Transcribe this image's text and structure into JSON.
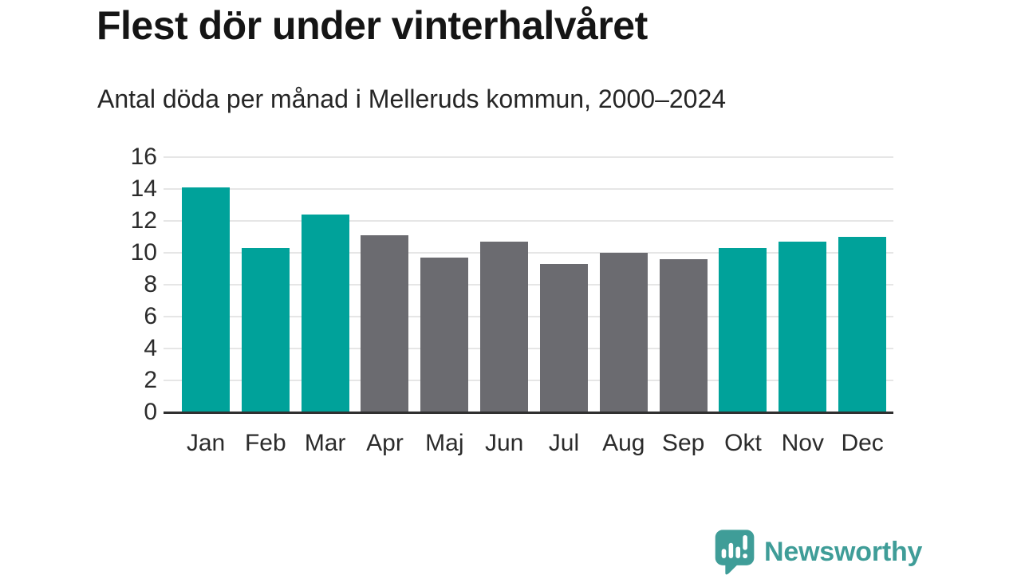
{
  "chart_data": {
    "type": "bar",
    "title": "Flest dör under vinterhalvåret",
    "subtitle": "Antal döda per månad i Melleruds kommun, 2000–2024",
    "categories": [
      "Jan",
      "Feb",
      "Mar",
      "Apr",
      "Maj",
      "Jun",
      "Jul",
      "Aug",
      "Sep",
      "Okt",
      "Nov",
      "Dec"
    ],
    "values": [
      14.1,
      10.3,
      12.4,
      11.1,
      9.7,
      10.7,
      9.3,
      10.0,
      9.6,
      10.3,
      10.7,
      11.0
    ],
    "bar_color_keys": [
      "teal",
      "teal",
      "teal",
      "gray",
      "gray",
      "gray",
      "gray",
      "gray",
      "gray",
      "teal",
      "teal",
      "teal"
    ],
    "xlabel": "",
    "ylabel": "",
    "ylim": [
      0,
      16
    ],
    "yticks": [
      0,
      2,
      4,
      6,
      8,
      10,
      12,
      14,
      16
    ],
    "grid": "horizontal",
    "legend": "none"
  },
  "colors": {
    "teal": "#00a29a",
    "gray": "#6b6b70",
    "gridline": "#e6e6e6",
    "axis": "#303030",
    "tick_text": "#2b2b2b",
    "title_text": "#151515",
    "subtitle_text": "#262626",
    "brand": "#3f9d98"
  },
  "brand": {
    "name": "Newsworthy"
  }
}
